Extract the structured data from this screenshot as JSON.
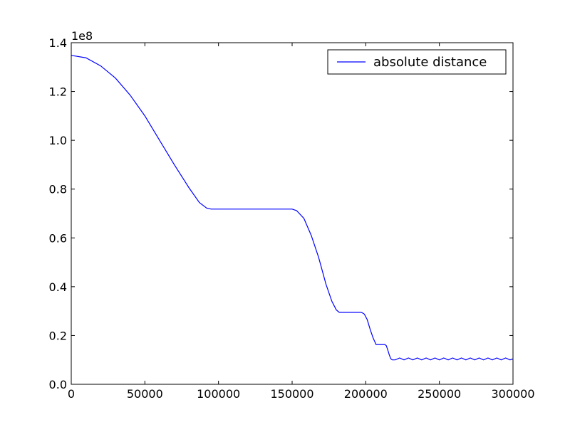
{
  "chart_data": {
    "type": "line",
    "title": "",
    "xlabel": "",
    "ylabel": "",
    "y_offset_label": "1e8",
    "xlim": [
      0,
      300000
    ],
    "ylim": [
      0,
      1.4
    ],
    "x_ticks": [
      0,
      50000,
      100000,
      150000,
      200000,
      250000,
      300000
    ],
    "x_tick_labels": [
      "0",
      "50000",
      "100000",
      "150000",
      "200000",
      "250000",
      "300000"
    ],
    "y_ticks": [
      0,
      0.2,
      0.4,
      0.6,
      0.8,
      1.0,
      1.2,
      1.4
    ],
    "y_tick_labels": [
      "0.0",
      "0.2",
      "0.4",
      "0.6",
      "0.8",
      "1.0",
      "1.2",
      "1.4"
    ],
    "grid": false,
    "legend_position": "upper right",
    "series": [
      {
        "name": "absolute distance",
        "color": "#0000ff",
        "x": [
          0,
          10000,
          20000,
          30000,
          40000,
          50000,
          60000,
          70000,
          80000,
          87000,
          92000,
          95000,
          100000,
          120000,
          140000,
          150000,
          153000,
          158000,
          163000,
          168000,
          173000,
          177000,
          180000,
          182000,
          185000,
          190000,
          197000,
          199000,
          201000,
          203000,
          205000,
          207000,
          210000,
          213000,
          214000,
          215000,
          216000,
          217000,
          218000,
          220000,
          223000,
          226000,
          229000,
          232000,
          235000,
          238000,
          241000,
          244000,
          247000,
          250000,
          253000,
          256000,
          259000,
          262000,
          265000,
          268000,
          271000,
          274000,
          277000,
          280000,
          283000,
          286000,
          289000,
          292000,
          295000,
          298000,
          300000
        ],
        "values": [
          1.348,
          1.338,
          1.305,
          1.255,
          1.185,
          1.1,
          1.0,
          0.9,
          0.805,
          0.745,
          0.722,
          0.718,
          0.718,
          0.718,
          0.718,
          0.718,
          0.712,
          0.68,
          0.61,
          0.52,
          0.41,
          0.34,
          0.305,
          0.295,
          0.295,
          0.295,
          0.295,
          0.288,
          0.265,
          0.225,
          0.19,
          0.163,
          0.163,
          0.163,
          0.158,
          0.14,
          0.12,
          0.105,
          0.1,
          0.1,
          0.108,
          0.1,
          0.108,
          0.1,
          0.108,
          0.1,
          0.108,
          0.1,
          0.108,
          0.1,
          0.108,
          0.1,
          0.108,
          0.1,
          0.108,
          0.1,
          0.108,
          0.1,
          0.108,
          0.1,
          0.108,
          0.1,
          0.108,
          0.1,
          0.108,
          0.1,
          0.104
        ]
      }
    ]
  }
}
